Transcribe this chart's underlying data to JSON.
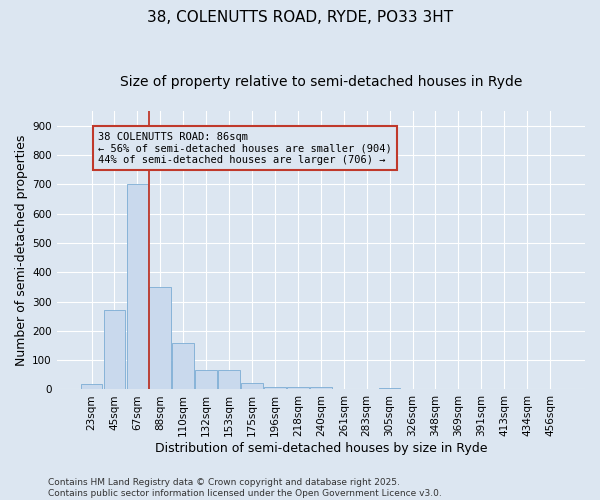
{
  "title": "38, COLENUTTS ROAD, RYDE, PO33 3HT",
  "subtitle": "Size of property relative to semi-detached houses in Ryde",
  "xlabel": "Distribution of semi-detached houses by size in Ryde",
  "ylabel": "Number of semi-detached properties",
  "categories": [
    "23sqm",
    "45sqm",
    "67sqm",
    "88sqm",
    "110sqm",
    "132sqm",
    "153sqm",
    "175sqm",
    "196sqm",
    "218sqm",
    "240sqm",
    "261sqm",
    "283sqm",
    "305sqm",
    "326sqm",
    "348sqm",
    "369sqm",
    "391sqm",
    "413sqm",
    "434sqm",
    "456sqm"
  ],
  "values": [
    20,
    270,
    700,
    350,
    157,
    65,
    65,
    22,
    10,
    10,
    8,
    0,
    0,
    5,
    0,
    0,
    0,
    0,
    0,
    0,
    0
  ],
  "bar_color": "#c9d9ed",
  "bar_edge_color": "#7bacd4",
  "vline_index": 2.5,
  "vline_color": "#c0392b",
  "annotation_label": "38 COLENUTTS ROAD: 86sqm",
  "annotation_line1": "← 56% of semi-detached houses are smaller (904)",
  "annotation_line2": "44% of semi-detached houses are larger (706) →",
  "annotation_box_edge_color": "#c0392b",
  "ylim": [
    0,
    950
  ],
  "yticks": [
    0,
    100,
    200,
    300,
    400,
    500,
    600,
    700,
    800,
    900
  ],
  "bg_color": "#dce6f1",
  "grid_color": "#ffffff",
  "footnote1": "Contains HM Land Registry data © Crown copyright and database right 2025.",
  "footnote2": "Contains public sector information licensed under the Open Government Licence v3.0.",
  "title_fontsize": 11,
  "subtitle_fontsize": 10,
  "axis_label_fontsize": 9,
  "tick_fontsize": 7.5,
  "annotation_fontsize": 7.5,
  "footnote_fontsize": 6.5
}
